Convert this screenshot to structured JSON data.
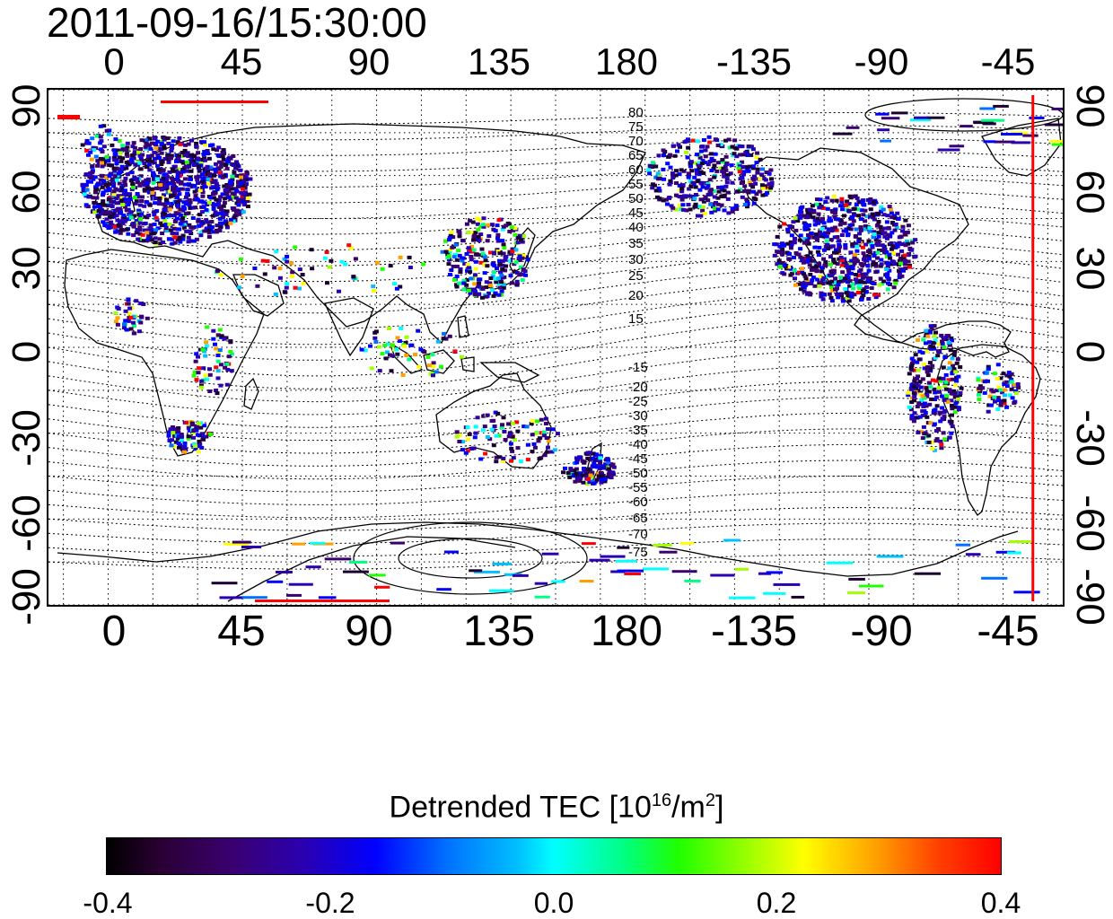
{
  "timestamp": "2011-09-16/15:30:00",
  "axes": {
    "top_ticks": [
      "0",
      "45",
      "90",
      "135",
      "180",
      "-135",
      "-90",
      "-45"
    ],
    "bottom_ticks": [
      "0",
      "45",
      "90",
      "135",
      "180",
      "-135",
      "-90",
      "-45"
    ],
    "left_ticks": [
      "90",
      "60",
      "30",
      "0",
      "-30",
      "-60",
      "-90"
    ],
    "right_ticks": [
      "90",
      "60",
      "30",
      "0",
      "-30",
      "-60",
      "-90"
    ],
    "lon_range": [
      -20,
      320
    ],
    "lat_range": [
      -90,
      90
    ],
    "grid": "dotted, every 15 degrees"
  },
  "contour_labels": [
    "80",
    "75",
    "70",
    "65",
    "60",
    "55",
    "50",
    "45",
    "40",
    "35",
    "30",
    "25",
    "20",
    "15",
    "-15",
    "-20",
    "-25",
    "-30",
    "-35",
    "-40",
    "-45",
    "-50",
    "-55",
    "-60",
    "-65",
    "-70",
    "-75"
  ],
  "marker_line": {
    "color": "#ff0000",
    "longitude": -50
  },
  "colorbar": {
    "label_main": "Detrended TEC  [10",
    "label_exp": "16",
    "label_unit": "/m",
    "label_exp2": "2",
    "label_end": "]",
    "ticks": [
      "-0.4",
      "-0.2",
      "0.0",
      "0.2",
      "0.4"
    ],
    "range": [
      -0.4,
      0.4
    ]
  },
  "colors": {
    "frame": "#000000",
    "coast": "#000000",
    "marker": "#ff0000"
  }
}
